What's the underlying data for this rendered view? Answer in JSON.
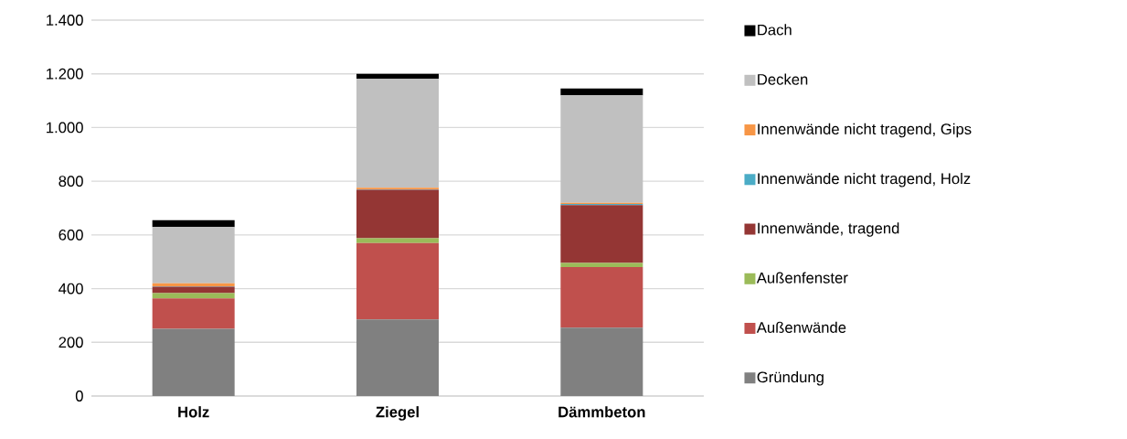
{
  "chart_data": {
    "type": "bar",
    "stacked": true,
    "categories": [
      "Holz",
      "Ziegel",
      "Dämmbeton"
    ],
    "series": [
      {
        "name": "Gründung",
        "color": "#808080",
        "values": [
          250,
          285,
          255
        ]
      },
      {
        "name": "Außenwände",
        "color": "#c0504d",
        "values": [
          114,
          285,
          225
        ]
      },
      {
        "name": "Außenfenster",
        "color": "#9bbb59",
        "values": [
          19,
          18,
          16
        ]
      },
      {
        "name": "Innenwände, tragend",
        "color": "#943634",
        "values": [
          24,
          180,
          215
        ]
      },
      {
        "name": "Innenwände nicht tragend, Holz",
        "color": "#4bacc6",
        "values": [
          2,
          2,
          4
        ]
      },
      {
        "name": "Innenwände nicht tragend, Gips",
        "color": "#f79646",
        "values": [
          11,
          6,
          5
        ]
      },
      {
        "name": "Decken",
        "color": "#c0c0c0",
        "values": [
          209,
          405,
          400
        ]
      },
      {
        "name": "Dach",
        "color": "#000000",
        "values": [
          26,
          19,
          25
        ]
      }
    ],
    "ylim": [
      0,
      1400
    ],
    "yticks": [
      0,
      200,
      400,
      600,
      800,
      {
        "value": 1000,
        "label": "1.000"
      },
      {
        "value": 1200,
        "label": "1.200"
      },
      {
        "value": 1400,
        "label": "1.400"
      }
    ],
    "grid": "y",
    "legend": "right"
  }
}
